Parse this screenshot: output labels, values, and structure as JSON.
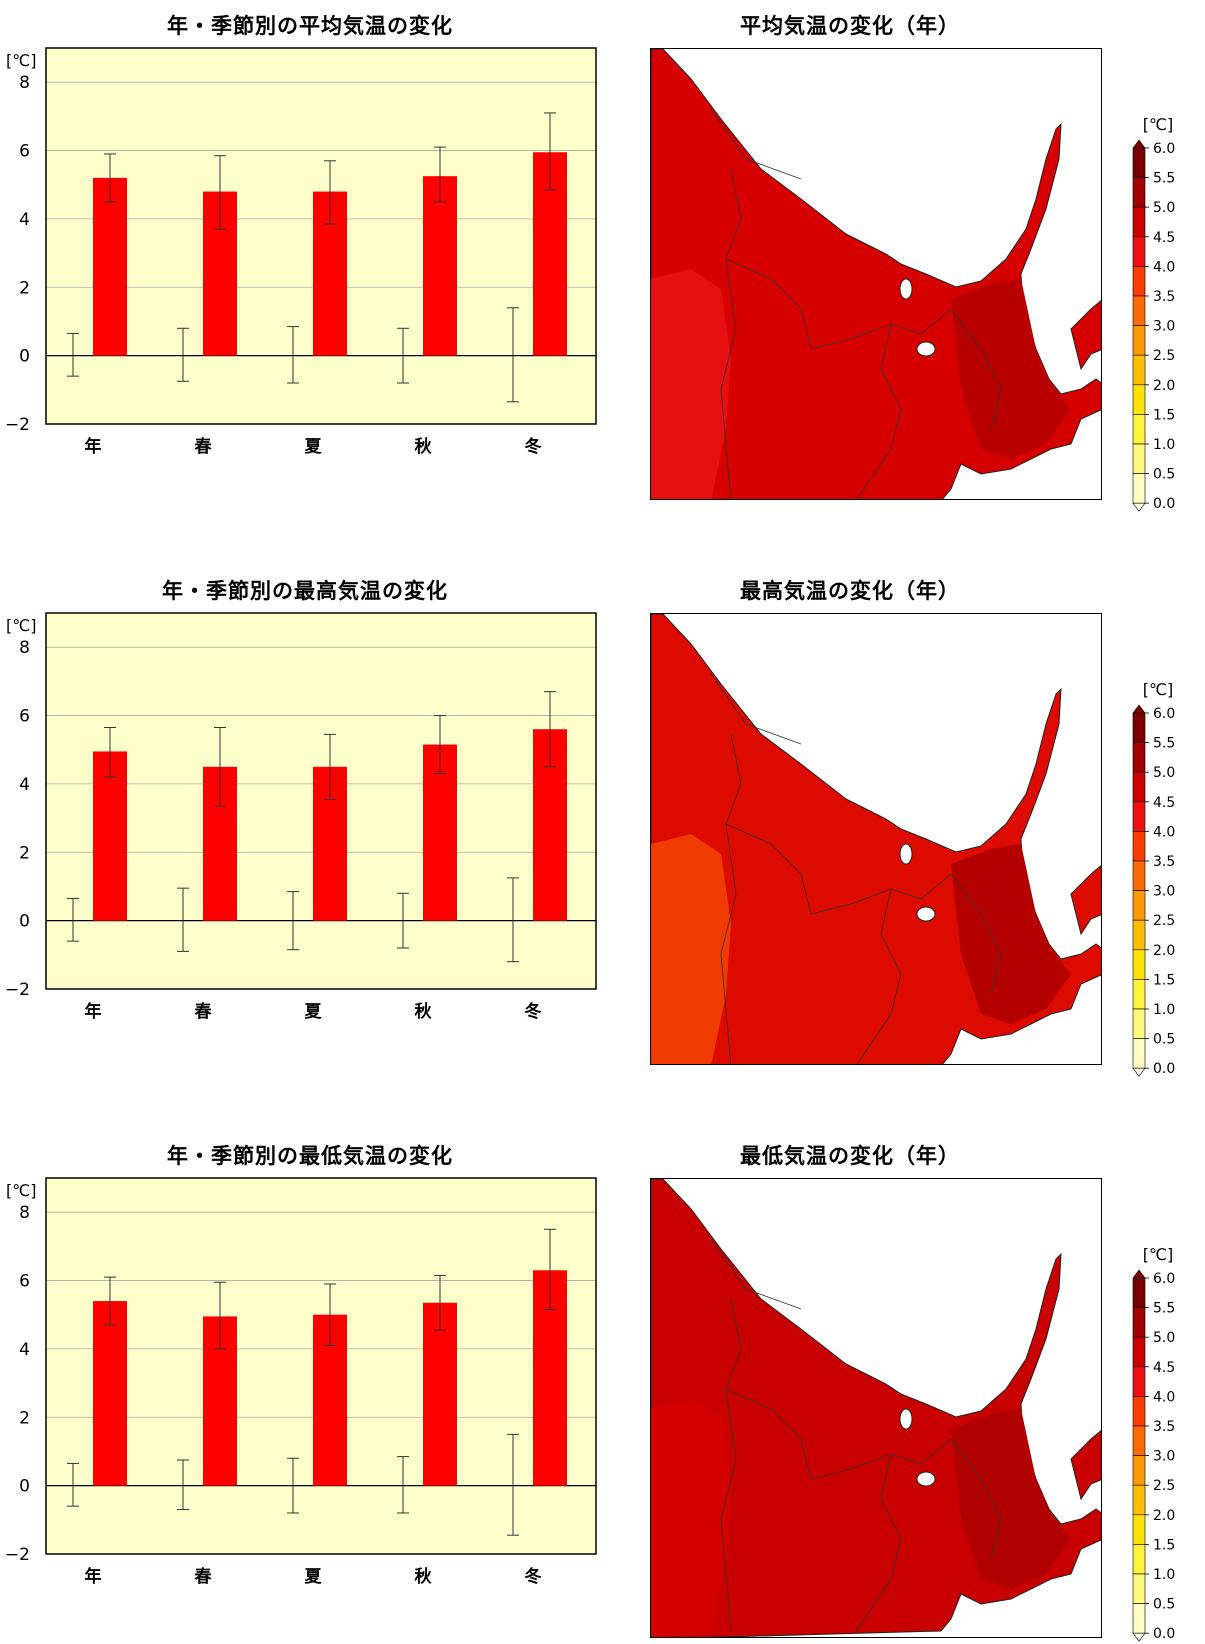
{
  "chart_data": [
    {
      "type": "bar",
      "title": "年・季節別の平均気温の変化",
      "ylabel": "[℃]",
      "categories": [
        "年",
        "春",
        "夏",
        "秋",
        "冬"
      ],
      "ylim": [
        -2,
        9
      ],
      "yticks": [
        "−2",
        "0",
        "2",
        "4",
        "6",
        "8"
      ],
      "series": [
        {
          "values": [
            5.2,
            4.8,
            4.8,
            5.25,
            5.95
          ],
          "error_low": [
            4.5,
            3.7,
            3.85,
            4.5,
            4.85
          ],
          "error_high": [
            5.9,
            5.85,
            5.7,
            6.1,
            7.1
          ]
        },
        {
          "values": [
            0,
            0,
            0,
            0,
            0
          ],
          "error_low": [
            -0.6,
            -0.75,
            -0.8,
            -0.8,
            -1.35
          ],
          "error_high": [
            0.65,
            0.8,
            0.85,
            0.8,
            1.4
          ]
        }
      ]
    },
    {
      "type": "bar",
      "title": "年・季節別の最高気温の変化",
      "ylabel": "[℃]",
      "categories": [
        "年",
        "春",
        "夏",
        "秋",
        "冬"
      ],
      "ylim": [
        -2,
        9
      ],
      "yticks": [
        "−2",
        "0",
        "2",
        "4",
        "6",
        "8"
      ],
      "series": [
        {
          "values": [
            4.95,
            4.5,
            4.5,
            5.15,
            5.6
          ],
          "error_low": [
            4.2,
            3.35,
            3.55,
            4.3,
            4.5
          ],
          "error_high": [
            5.65,
            5.65,
            5.45,
            6.0,
            6.7
          ]
        },
        {
          "values": [
            0,
            0,
            0,
            0,
            0
          ],
          "error_low": [
            -0.6,
            -0.9,
            -0.85,
            -0.8,
            -1.2
          ],
          "error_high": [
            0.65,
            0.95,
            0.85,
            0.8,
            1.25
          ]
        }
      ]
    },
    {
      "type": "bar",
      "title": "年・季節別の最低気温の変化",
      "ylabel": "[℃]",
      "categories": [
        "年",
        "春",
        "夏",
        "秋",
        "冬"
      ],
      "ylim": [
        -2,
        9
      ],
      "yticks": [
        "−2",
        "0",
        "2",
        "4",
        "6",
        "8"
      ],
      "series": [
        {
          "values": [
            5.4,
            4.95,
            5.0,
            5.35,
            6.3
          ],
          "error_low": [
            4.7,
            4.0,
            4.1,
            4.55,
            5.15
          ],
          "error_high": [
            6.1,
            5.95,
            5.9,
            6.15,
            7.5
          ]
        },
        {
          "values": [
            0,
            0,
            0,
            0,
            0
          ],
          "error_low": [
            -0.6,
            -0.7,
            -0.8,
            -0.8,
            -1.45
          ],
          "error_high": [
            0.65,
            0.75,
            0.8,
            0.85,
            1.5
          ]
        }
      ]
    }
  ],
  "maps": [
    {
      "title": "平均気温の変化（年）",
      "fill_main": "#d70000",
      "fill_dark": "#b80000",
      "fill_light": "#e61010"
    },
    {
      "title": "最高気温の変化（年）",
      "fill_main": "#dd0a00",
      "fill_dark": "#b50000",
      "fill_light": "#f03c00"
    },
    {
      "title": "最低気温の変化（年）",
      "fill_main": "#c90000",
      "fill_dark": "#b00000",
      "fill_light": "#d40000"
    }
  ],
  "colorbar": {
    "unit": "[℃]",
    "ticks": [
      "6.0",
      "5.5",
      "5.0",
      "4.5",
      "4.0",
      "3.5",
      "3.0",
      "2.5",
      "2.0",
      "1.5",
      "1.0",
      "0.5",
      "0.0"
    ],
    "colors": [
      "#7a0000",
      "#a30000",
      "#cc0000",
      "#ee1010",
      "#ff3b00",
      "#ff6a00",
      "#ff9900",
      "#ffbf00",
      "#ffe100",
      "#fff23a",
      "#fff87e",
      "#fffcc0",
      "#ffffee"
    ]
  },
  "colors": {
    "bar": "#ff0000",
    "plot_bg": "#ffffcc"
  }
}
